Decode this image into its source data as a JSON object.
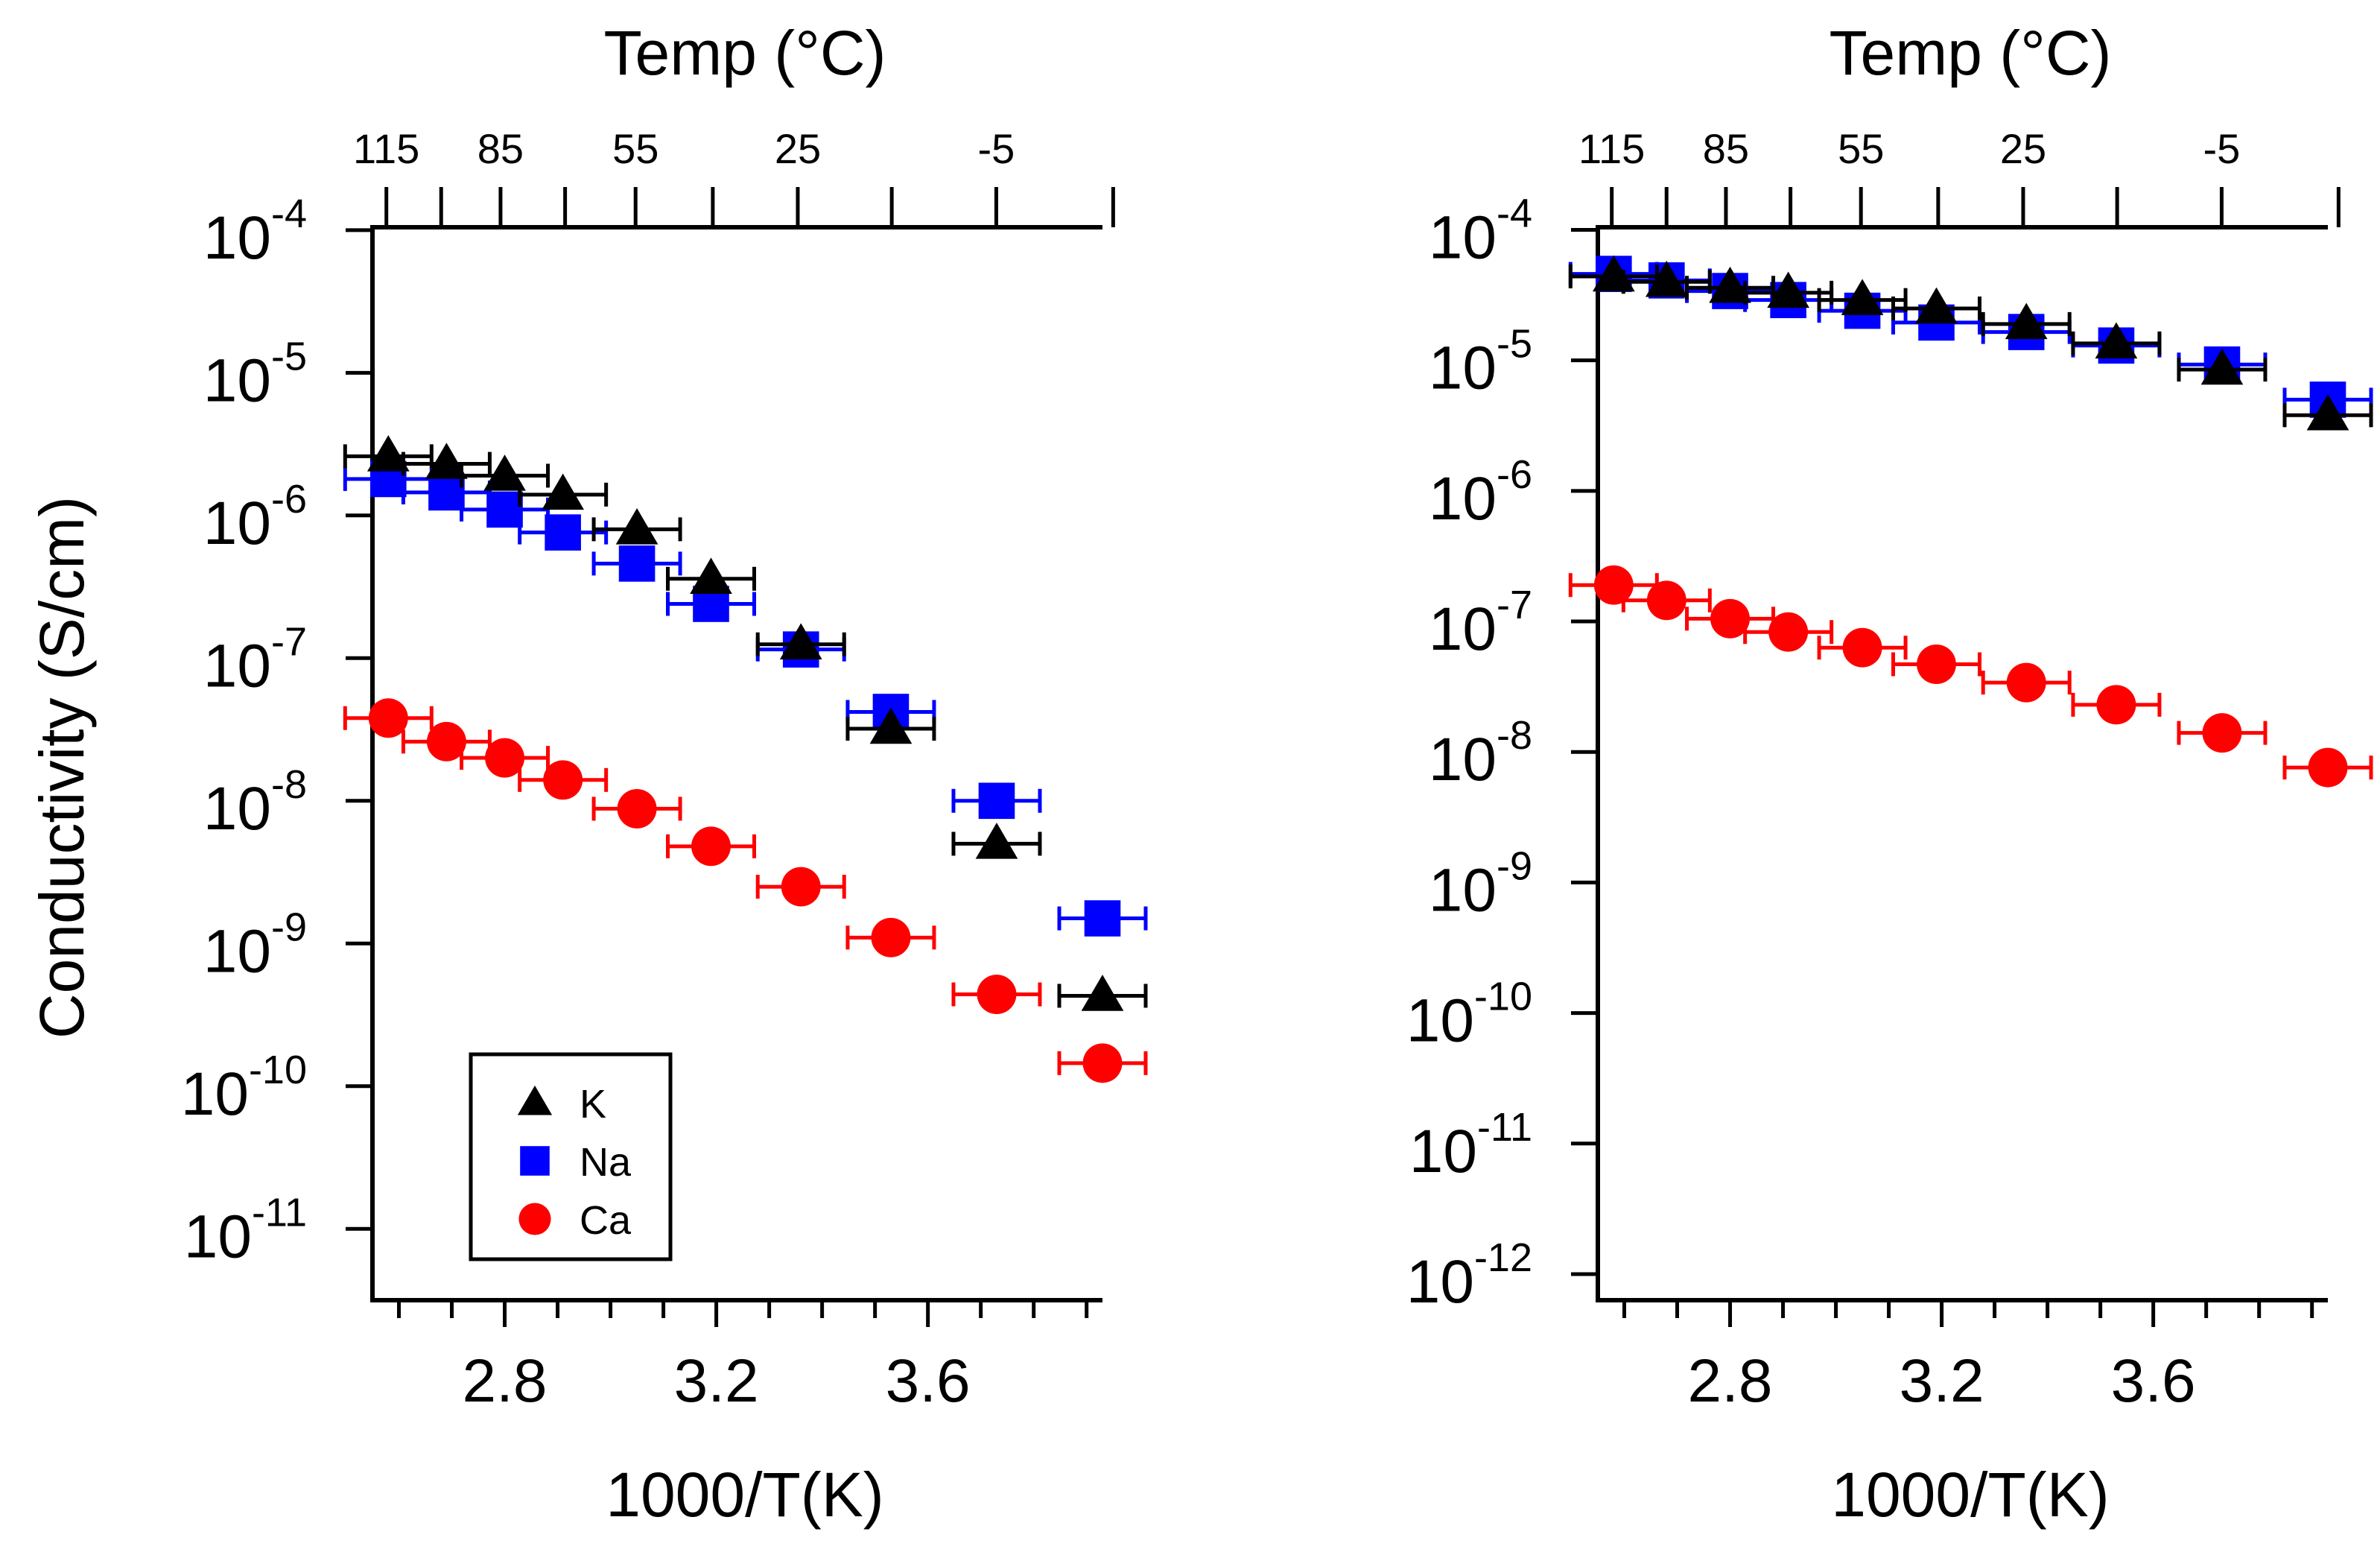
{
  "figure": {
    "ylabel": "Conductivity (S/cm)"
  },
  "colors": {
    "K": "#000000",
    "Na": "#0000ff",
    "Ca": "#ff0000"
  },
  "legend": {
    "items": [
      {
        "label": "K",
        "series": "K",
        "marker": "triangle"
      },
      {
        "label": "Na",
        "series": "Na",
        "marker": "square"
      },
      {
        "label": "Ca",
        "series": "Ca",
        "marker": "circle"
      }
    ]
  },
  "chart_data": [
    {
      "type": "scatter",
      "panel": "left",
      "xlabel": "1000/T(K)",
      "top_xlabel": "Temp (°C)",
      "ylabel": "Conductivity (S/cm)",
      "yscale": "log",
      "ylim_exp": [
        -11.5,
        -3.98
      ],
      "xlim": [
        2.55,
        3.93
      ],
      "x_ticks": [
        2.8,
        3.2,
        3.6
      ],
      "x_tick_labels": [
        "2.8",
        "3.2",
        "3.6"
      ],
      "y_tick_exps": [
        -11,
        -10,
        -9,
        -8,
        -7,
        -6,
        -5,
        -4
      ],
      "y_tick_labels": [
        {
          "base": "10",
          "exp": "-11"
        },
        {
          "base": "10",
          "exp": "-10"
        },
        {
          "base": "10",
          "exp": "-9"
        },
        {
          "base": "10",
          "exp": "-8"
        },
        {
          "base": "10",
          "exp": "-7"
        },
        {
          "base": "10",
          "exp": "-6"
        },
        {
          "base": "10",
          "exp": "-5"
        },
        {
          "base": "10",
          "exp": "-4"
        }
      ],
      "top_ticks_c": [
        115,
        100,
        85,
        70,
        55,
        40,
        25,
        10,
        -5,
        -20
      ],
      "top_tick_labels": [
        {
          "c": 115,
          "label": "115"
        },
        {
          "c": 85,
          "label": "85"
        },
        {
          "c": 55,
          "label": "55"
        },
        {
          "c": 25,
          "label": "25"
        },
        {
          "c": -5,
          "label": "-5"
        }
      ],
      "legend": true,
      "series": [
        {
          "name": "K",
          "marker": "triangle",
          "x": [
            2.58,
            2.69,
            2.8,
            2.91,
            3.05,
            3.19,
            3.36,
            3.53,
            3.73,
            3.93
          ],
          "y": [
            2.6e-06,
            2.3e-06,
            1.9e-06,
            1.4e-06,
            8e-07,
            3.6e-07,
            1.25e-07,
            3.2e-08,
            5e-09,
            4.3e-10
          ]
        },
        {
          "name": "Na",
          "marker": "square",
          "x": [
            2.58,
            2.69,
            2.8,
            2.91,
            3.05,
            3.19,
            3.36,
            3.53,
            3.73,
            3.93
          ],
          "y": [
            1.8e-06,
            1.45e-06,
            1.1e-06,
            7.6e-07,
            4.6e-07,
            2.4e-07,
            1.15e-07,
            4.2e-08,
            1e-08,
            1.5e-09
          ]
        },
        {
          "name": "Ca",
          "marker": "circle",
          "x": [
            2.58,
            2.69,
            2.8,
            2.91,
            3.05,
            3.19,
            3.36,
            3.53,
            3.73,
            3.93
          ],
          "y": [
            3.8e-08,
            2.6e-08,
            2e-08,
            1.4e-08,
            8.8e-09,
            4.8e-09,
            2.5e-09,
            1.1e-09,
            4.4e-10,
            1.45e-10
          ]
        }
      ]
    },
    {
      "type": "scatter",
      "panel": "right",
      "xlabel": "1000/T(K)",
      "top_xlabel": "Temp (°C)",
      "ylabel": "",
      "yscale": "log",
      "ylim_exp": [
        -12.2,
        -3.98
      ],
      "xlim": [
        2.55,
        3.93
      ],
      "x_ticks": [
        2.8,
        3.2,
        3.6
      ],
      "x_tick_labels": [
        "2.8",
        "3.2",
        "3.6"
      ],
      "y_tick_exps": [
        -12,
        -11,
        -10,
        -9,
        -8,
        -7,
        -6,
        -5,
        -4
      ],
      "y_tick_labels": [
        {
          "base": "10",
          "exp": "-12"
        },
        {
          "base": "10",
          "exp": "-11"
        },
        {
          "base": "10",
          "exp": "-10"
        },
        {
          "base": "10",
          "exp": "-9"
        },
        {
          "base": "10",
          "exp": "-8"
        },
        {
          "base": "10",
          "exp": "-7"
        },
        {
          "base": "10",
          "exp": "-6"
        },
        {
          "base": "10",
          "exp": "-5"
        },
        {
          "base": "10",
          "exp": "-4"
        }
      ],
      "top_ticks_c": [
        115,
        100,
        85,
        70,
        55,
        40,
        25,
        10,
        -5,
        -20
      ],
      "top_tick_labels": [
        {
          "c": 115,
          "label": "115"
        },
        {
          "c": 85,
          "label": "85"
        },
        {
          "c": 55,
          "label": "55"
        },
        {
          "c": 25,
          "label": "25"
        },
        {
          "c": -5,
          "label": "-5"
        }
      ],
      "legend": false,
      "series": [
        {
          "name": "K",
          "marker": "triangle",
          "x": [
            2.58,
            2.68,
            2.8,
            2.91,
            3.05,
            3.19,
            3.36,
            3.53,
            3.73,
            3.93
          ],
          "y": [
            4.4e-05,
            4e-05,
            3.6e-05,
            3.3e-05,
            2.9e-05,
            2.5e-05,
            1.9e-05,
            1.35e-05,
            8.5e-06,
            3.8e-06
          ]
        },
        {
          "name": "Na",
          "marker": "square",
          "x": [
            2.58,
            2.68,
            2.8,
            2.91,
            3.05,
            3.19,
            3.36,
            3.53,
            3.73,
            3.93
          ],
          "y": [
            4.6e-05,
            4.1e-05,
            3.4e-05,
            2.9e-05,
            2.4e-05,
            1.95e-05,
            1.65e-05,
            1.3e-05,
            9.3e-06,
            5e-06
          ]
        },
        {
          "name": "Ca",
          "marker": "circle",
          "x": [
            2.58,
            2.68,
            2.8,
            2.91,
            3.05,
            3.19,
            3.36,
            3.53,
            3.73,
            3.93
          ],
          "y": [
            1.9e-07,
            1.45e-07,
            1.05e-07,
            8.3e-08,
            6.3e-08,
            4.7e-08,
            3.4e-08,
            2.3e-08,
            1.4e-08,
            7.6e-09
          ]
        }
      ]
    }
  ]
}
